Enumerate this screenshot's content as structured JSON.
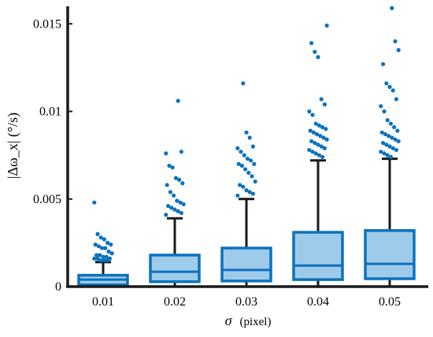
{
  "chart_data": {
    "type": "box",
    "title": "",
    "xlabel_symbol": "σ",
    "xlabel_unit": "(pixel)",
    "ylabel": "|Δω_x| (°/s)",
    "ylim": [
      0,
      0.016
    ],
    "categories": [
      "0.01",
      "0.02",
      "0.03",
      "0.04",
      "0.05"
    ],
    "y_ticks": [
      0,
      0.005,
      0.01,
      0.015
    ],
    "y_tick_labels": [
      "0",
      "0.005",
      "0.01",
      "0.015"
    ],
    "boxes": [
      {
        "category": "0.01",
        "min": 0,
        "q1": 0.0001,
        "median": 0.0004,
        "q3": 0.00065,
        "max": 0.0014,
        "outliers": [
          0.0048,
          0.003,
          0.0028,
          0.0027,
          0.0025,
          0.0024,
          0.0024,
          0.0023,
          0.0022,
          0.0022,
          0.002,
          0.0019,
          0.0018,
          0.0018,
          0.0017,
          0.0017,
          0.0016,
          0.0016,
          0.0016,
          0.0015,
          0.0015,
          0.0015
        ]
      },
      {
        "category": "0.02",
        "min": 0,
        "q1": 0.00028,
        "median": 0.00085,
        "q3": 0.0018,
        "max": 0.0039,
        "outliers": [
          0.0106,
          0.0077,
          0.0076,
          0.0069,
          0.0068,
          0.0062,
          0.0061,
          0.0059,
          0.0058,
          0.0054,
          0.0052,
          0.0049,
          0.0048,
          0.0047,
          0.0046,
          0.0045,
          0.0044,
          0.0043,
          0.0042,
          0.0041
        ]
      },
      {
        "category": "0.03",
        "min": 0,
        "q1": 0.00032,
        "median": 0.00095,
        "q3": 0.0022,
        "max": 0.005,
        "outliers": [
          0.0116,
          0.0088,
          0.0085,
          0.008,
          0.0079,
          0.0077,
          0.0075,
          0.0073,
          0.0072,
          0.007,
          0.007,
          0.0069,
          0.0067,
          0.0065,
          0.0063,
          0.006,
          0.0058,
          0.0057,
          0.0055,
          0.0054,
          0.0053,
          0.0052
        ]
      },
      {
        "category": "0.04",
        "min": 0,
        "q1": 0.0004,
        "median": 0.0012,
        "q3": 0.0031,
        "max": 0.0072,
        "outliers": [
          0.0149,
          0.0139,
          0.0134,
          0.0131,
          0.0107,
          0.0104,
          0.01,
          0.0098,
          0.0093,
          0.0092,
          0.0091,
          0.009,
          0.0089,
          0.0088,
          0.0087,
          0.0086,
          0.0085,
          0.0084,
          0.0083,
          0.0082,
          0.0081,
          0.008,
          0.0079,
          0.0078,
          0.0077,
          0.0076,
          0.0075,
          0.0074
        ]
      },
      {
        "category": "0.05",
        "min": 0,
        "q1": 0.00045,
        "median": 0.0013,
        "q3": 0.0032,
        "max": 0.0073,
        "outliers": [
          0.0159,
          0.014,
          0.0135,
          0.0127,
          0.0116,
          0.0114,
          0.0112,
          0.0107,
          0.0103,
          0.01,
          0.0095,
          0.0093,
          0.0091,
          0.0089,
          0.0088,
          0.0087,
          0.0086,
          0.0085,
          0.0084,
          0.0083,
          0.0082,
          0.0081,
          0.008,
          0.0079,
          0.0078,
          0.0077,
          0.0076,
          0.0075,
          0.0074
        ]
      }
    ],
    "colors": {
      "box_fill": "#9fcbea",
      "box_stroke": "#0b72bf",
      "whisker": "#1a1a1a",
      "outlier": "#0b72bf",
      "axis": "#1a1a1a"
    },
    "grid": false,
    "legend": "none"
  }
}
